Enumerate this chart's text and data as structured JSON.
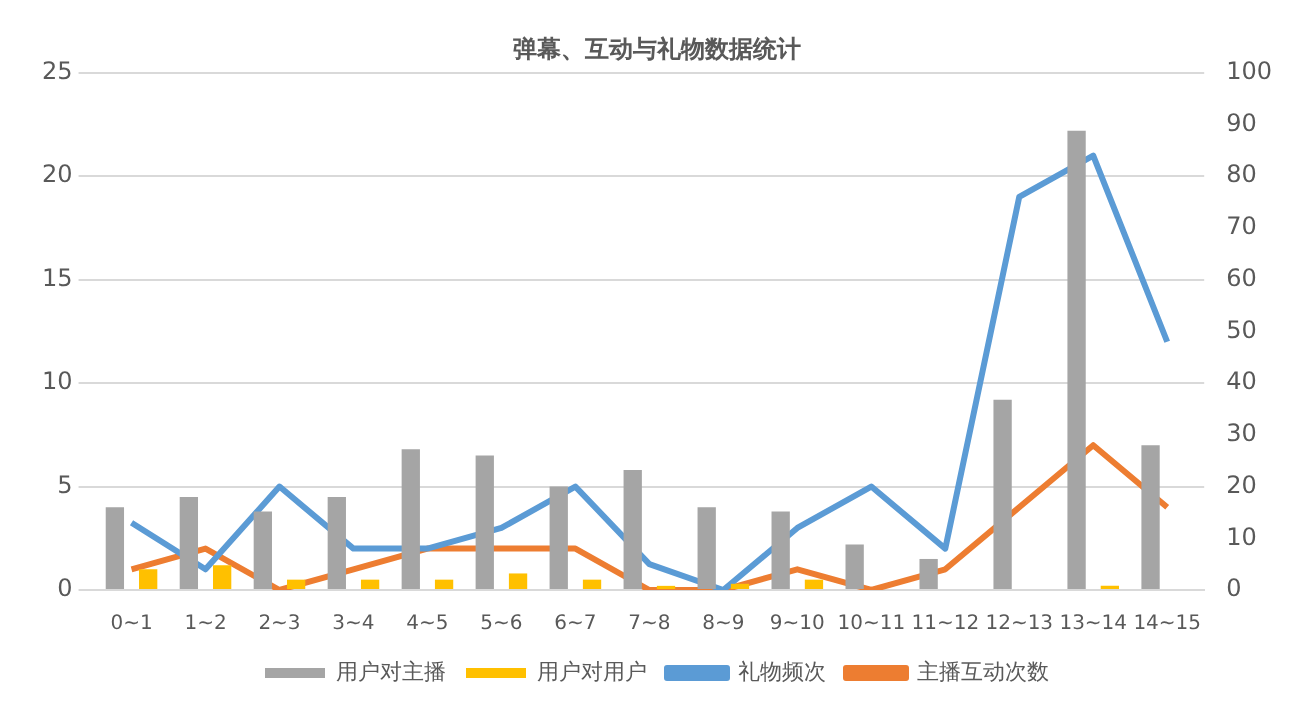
{
  "chart_data": {
    "type": "bar",
    "title": "弹幕、互动与礼物数据统计",
    "categories": [
      "0~1",
      "1~2",
      "2~3",
      "3~4",
      "4~5",
      "5~6",
      "6~7",
      "7~8",
      "8~9",
      "9~10",
      "10~11",
      "11~12",
      "12~13",
      "13~14",
      "14~15"
    ],
    "series": [
      {
        "name": "用户对主播",
        "color": "#a5a5a5",
        "values": [
          4,
          4.5,
          3.8,
          4.5,
          6.8,
          6.5,
          5,
          5.8,
          4,
          3.8,
          2.2,
          1.5,
          9.2,
          22.2,
          7
        ]
      },
      {
        "name": "用户对用户",
        "color": "#ffc000",
        "values": [
          1,
          1.2,
          0.5,
          0.5,
          0.5,
          0.8,
          0.5,
          0.2,
          0.3,
          0.5,
          0,
          0,
          0,
          0.2,
          0
        ]
      },
      {
        "name": "礼物频次",
        "color": "#5b9bd5",
        "type": "line",
        "axis": "y2",
        "values": [
          13,
          4,
          20,
          8,
          8,
          12,
          20,
          5,
          0,
          12,
          20,
          8,
          76,
          84,
          48
        ]
      },
      {
        "name": "主播互动次数",
        "color": "#ed7d31",
        "type": "line",
        "axis": "y2",
        "values": [
          4,
          8,
          0,
          4,
          8,
          8,
          8,
          0,
          0,
          4,
          0,
          4,
          16,
          28,
          16
        ]
      }
    ],
    "ylim": [
      0,
      25
    ],
    "yticks": [
      0,
      5,
      10,
      15,
      20,
      25
    ],
    "y2lim": [
      0,
      100
    ],
    "y2ticks": [
      0,
      10,
      20,
      30,
      40,
      50,
      60,
      70,
      80,
      90,
      100
    ],
    "grid": "y",
    "legend": "bottom",
    "marker": "none"
  }
}
